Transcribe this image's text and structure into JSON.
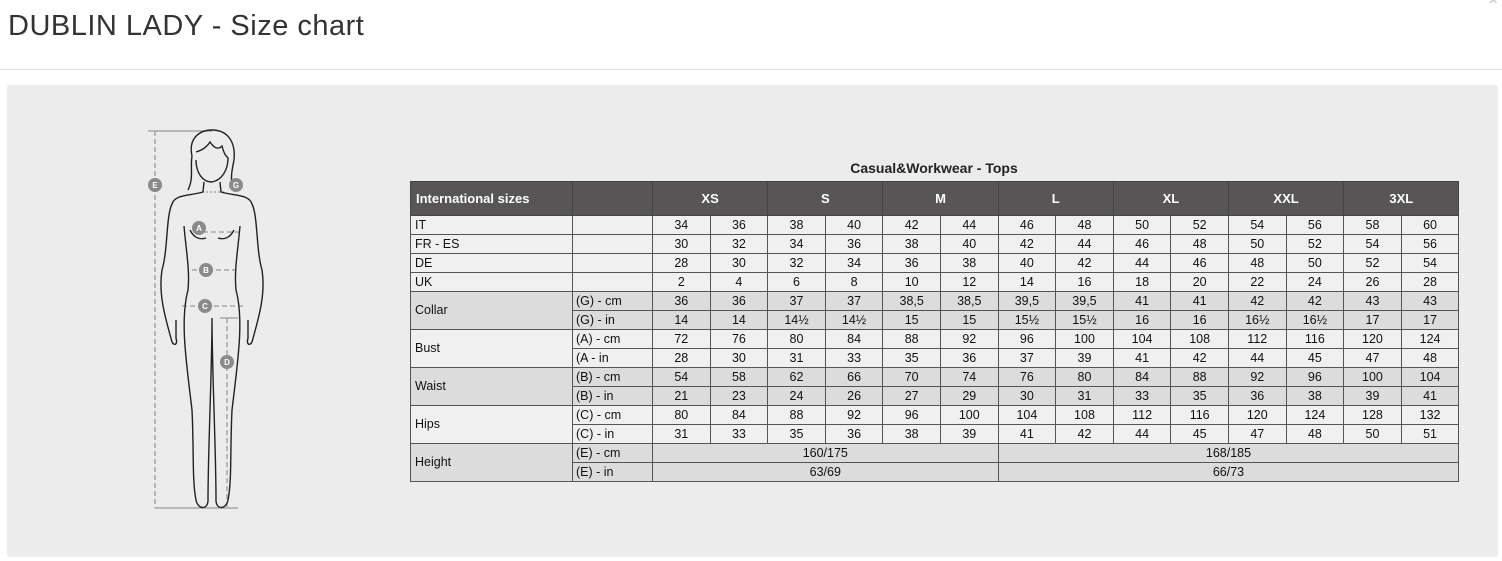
{
  "dialog": {
    "title": "DUBLIN LADY - Size chart",
    "close_icon": "close-icon"
  },
  "figure": {
    "markers": [
      "E",
      "G",
      "A",
      "B",
      "C",
      "D"
    ]
  },
  "table": {
    "title": "Casual&Workwear - Tops",
    "header": {
      "first": "International sizes",
      "sizes": [
        "XS",
        "S",
        "M",
        "L",
        "XL",
        "XXL",
        "3XL"
      ]
    },
    "rows": [
      {
        "label": "IT",
        "sub": "",
        "values": [
          "34",
          "36",
          "38",
          "40",
          "42",
          "44",
          "46",
          "48",
          "50",
          "52",
          "54",
          "56",
          "58",
          "60"
        ],
        "shade": "light"
      },
      {
        "label": "FR - ES",
        "sub": "",
        "values": [
          "30",
          "32",
          "34",
          "36",
          "38",
          "40",
          "42",
          "44",
          "46",
          "48",
          "50",
          "52",
          "54",
          "56"
        ],
        "shade": "light"
      },
      {
        "label": "DE",
        "sub": "",
        "values": [
          "28",
          "30",
          "32",
          "34",
          "36",
          "38",
          "40",
          "42",
          "44",
          "46",
          "48",
          "50",
          "52",
          "54"
        ],
        "shade": "light"
      },
      {
        "label": "UK",
        "sub": "",
        "values": [
          "2",
          "4",
          "6",
          "8",
          "10",
          "12",
          "14",
          "16",
          "18",
          "20",
          "22",
          "24",
          "26",
          "28"
        ],
        "shade": "light"
      },
      {
        "label": "Collar",
        "sub": "(G) - cm",
        "values": [
          "36",
          "36",
          "37",
          "37",
          "38,5",
          "38,5",
          "39,5",
          "39,5",
          "41",
          "41",
          "42",
          "42",
          "43",
          "43"
        ],
        "shade": "dark",
        "span": 2
      },
      {
        "label": "",
        "sub": "(G) - in",
        "values": [
          "14",
          "14",
          "14½",
          "14½",
          "15",
          "15",
          "15½",
          "15½",
          "16",
          "16",
          "16½",
          "16½",
          "17",
          "17"
        ],
        "shade": "dark"
      },
      {
        "label": "Bust",
        "sub": "(A) - cm",
        "values": [
          "72",
          "76",
          "80",
          "84",
          "88",
          "92",
          "96",
          "100",
          "104",
          "108",
          "112",
          "116",
          "120",
          "124"
        ],
        "shade": "light",
        "span": 2
      },
      {
        "label": "",
        "sub": "(A - in",
        "values": [
          "28",
          "30",
          "31",
          "33",
          "35",
          "36",
          "37",
          "39",
          "41",
          "42",
          "44",
          "45",
          "47",
          "48"
        ],
        "shade": "light"
      },
      {
        "label": "Waist",
        "sub": "(B) - cm",
        "values": [
          "54",
          "58",
          "62",
          "66",
          "70",
          "74",
          "76",
          "80",
          "84",
          "88",
          "92",
          "96",
          "100",
          "104"
        ],
        "shade": "dark",
        "span": 2
      },
      {
        "label": "",
        "sub": "(B) - in",
        "values": [
          "21",
          "23",
          "24",
          "26",
          "27",
          "29",
          "30",
          "31",
          "33",
          "35",
          "36",
          "38",
          "39",
          "41"
        ],
        "shade": "dark"
      },
      {
        "label": "Hips",
        "sub": "(C) - cm",
        "values": [
          "80",
          "84",
          "88",
          "92",
          "96",
          "100",
          "104",
          "108",
          "112",
          "116",
          "120",
          "124",
          "128",
          "132"
        ],
        "shade": "light",
        "span": 2
      },
      {
        "label": "",
        "sub": "(C) - in",
        "values": [
          "31",
          "33",
          "35",
          "36",
          "38",
          "39",
          "41",
          "42",
          "44",
          "45",
          "47",
          "48",
          "50",
          "51"
        ],
        "shade": "light"
      },
      {
        "label": "Height",
        "sub": "(E) - cm",
        "merged": [
          "160/175",
          "168/185"
        ],
        "shade": "dark",
        "span": 2
      },
      {
        "label": "",
        "sub": "(E) - in",
        "merged": [
          "63/69",
          "66/73"
        ],
        "shade": "dark"
      }
    ]
  }
}
